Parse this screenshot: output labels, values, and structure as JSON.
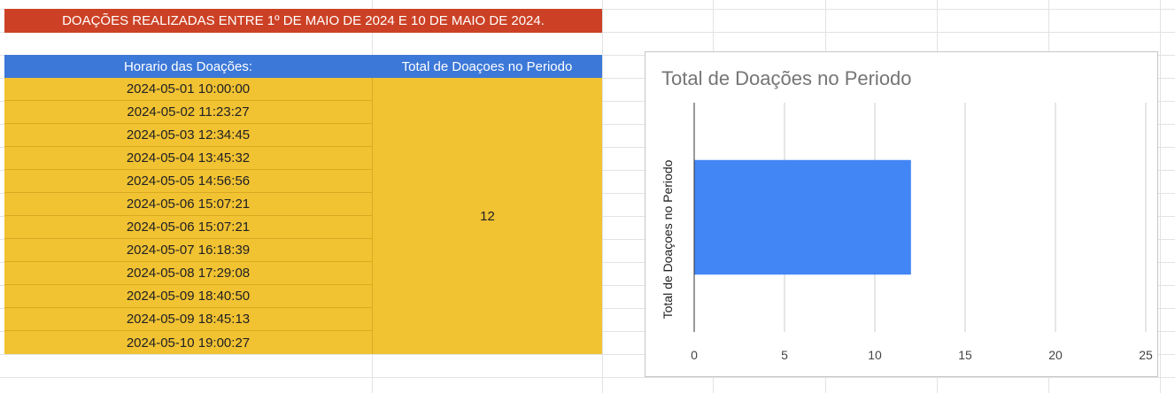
{
  "banner": {
    "text": "DOAÇÕES REALIZADAS ENTRE 1º DE MAIO DE 2024 E 10 DE MAIO DE 2024."
  },
  "table": {
    "headers": [
      "Horario das Doações:",
      "Total de Doaçoes no Periodo"
    ],
    "rows": [
      "2024-05-01 10:00:00",
      "2024-05-02 11:23:27",
      "2024-05-03 12:34:45",
      "2024-05-04 13:45:32",
      "2024-05-05 14:56:56",
      "2024-05-06 15:07:21",
      "2024-05-06 15:07:21",
      "2024-05-07 16:18:39",
      "2024-05-08 17:29:08",
      "2024-05-09 18:40:50",
      "2024-05-09 18:45:13",
      "2024-05-10 19:00:27"
    ],
    "total": "12"
  },
  "colors": {
    "banner": "#cc4125",
    "header": "#3c78d8",
    "cells": "#f1c232",
    "bar": "#4285f4"
  },
  "chart_data": {
    "type": "bar",
    "orientation": "horizontal",
    "title": "Total de Doações no Periodo",
    "ylabel": "Total de Doaçoes no Periodo",
    "xlabel": "",
    "categories": [
      ""
    ],
    "values": [
      12
    ],
    "xlim": [
      0,
      25
    ],
    "xticks": [
      "0",
      "5",
      "10",
      "15",
      "20",
      "25"
    ],
    "grid": true,
    "legend": "none"
  }
}
